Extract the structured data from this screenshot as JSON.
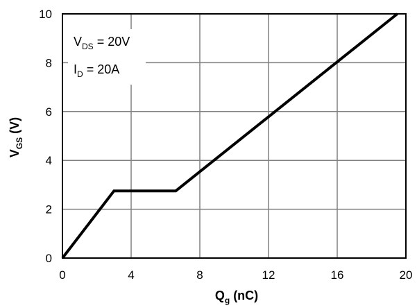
{
  "chart_data": {
    "type": "line",
    "xlabel": {
      "main": "Q",
      "sub": "g",
      "suffix": " (nC)"
    },
    "ylabel": {
      "main": "V",
      "sub": "GS",
      "suffix": " (V)"
    },
    "xlim": [
      0,
      20
    ],
    "ylim": [
      0,
      10
    ],
    "xticks": [
      0,
      4,
      8,
      12,
      16,
      20
    ],
    "yticks": [
      0,
      2,
      4,
      6,
      8,
      10
    ],
    "grid": true,
    "annotations": [
      {
        "main": "V",
        "sub": "DS",
        "rest": " = 20V"
      },
      {
        "main": "I",
        "sub": "D",
        "rest": " = 20A"
      }
    ],
    "series": [
      {
        "points": [
          {
            "x": 0,
            "y": 0
          },
          {
            "x": 3.0,
            "y": 2.75
          },
          {
            "x": 6.6,
            "y": 2.75
          },
          {
            "x": 19.5,
            "y": 10
          }
        ]
      }
    ],
    "line_color": "#000000",
    "grid_color": "#808080"
  }
}
